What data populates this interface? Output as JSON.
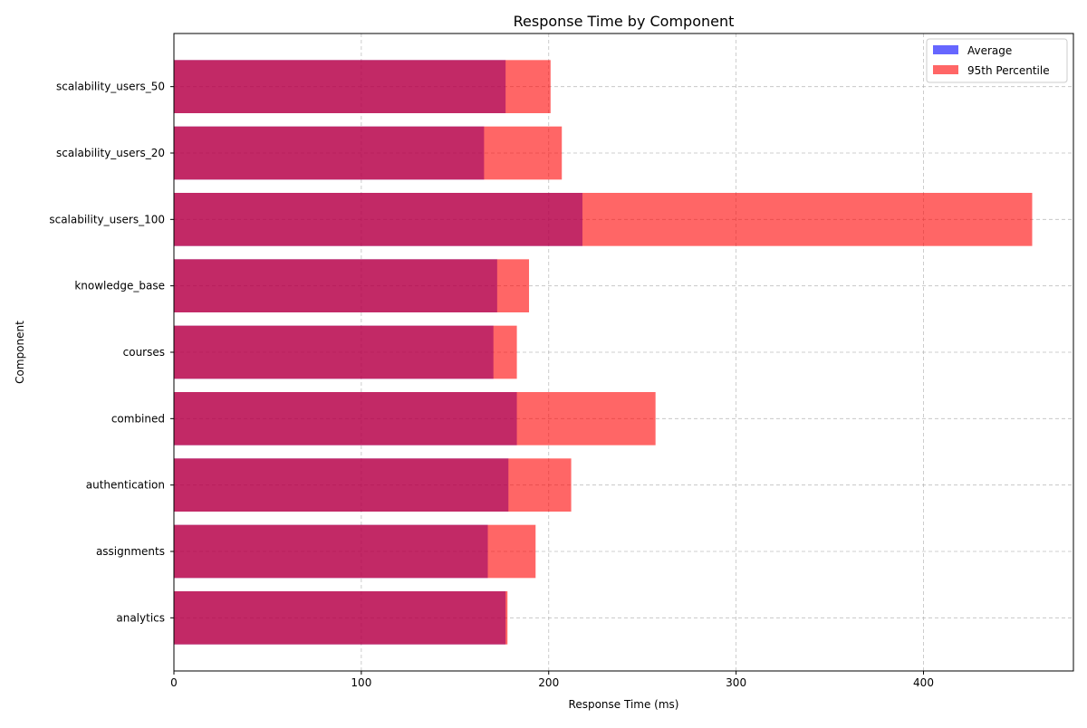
{
  "chart_data": {
    "type": "bar",
    "orientation": "horizontal",
    "title": "Response Time by Component",
    "xlabel": "Response Time (ms)",
    "ylabel": "Component",
    "categories": [
      "analytics",
      "assignments",
      "authentication",
      "combined",
      "courses",
      "knowledge_base",
      "scalability_users_100",
      "scalability_users_20",
      "scalability_users_50"
    ],
    "series": [
      {
        "name": "Average",
        "color": "#0000ff",
        "opacity": 0.6,
        "values": [
          177,
          167.5,
          178.5,
          183,
          170.5,
          172.5,
          218,
          165.5,
          177
        ]
      },
      {
        "name": "95th Percentile",
        "color": "#ff0000",
        "opacity": 0.6,
        "values": [
          178,
          193,
          212,
          257,
          183,
          189.5,
          458,
          207,
          201
        ]
      }
    ],
    "xlim": [
      0,
      480
    ],
    "xticks": [
      0,
      100,
      200,
      300,
      400
    ],
    "grid": true,
    "legend_position": "top-right"
  }
}
